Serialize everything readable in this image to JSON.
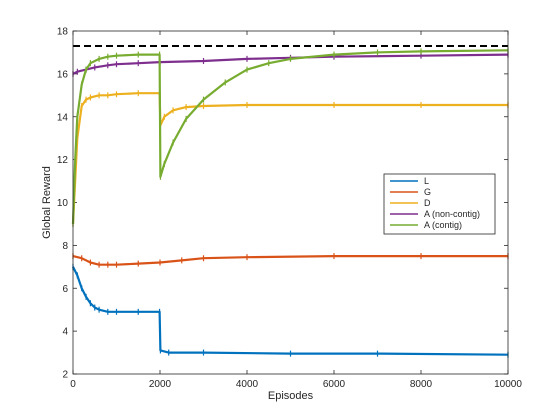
{
  "chart_data": {
    "type": "line",
    "title": "",
    "xlabel": "Episodes",
    "ylabel": "Global Reward",
    "xlim": [
      0,
      10000
    ],
    "ylim": [
      2,
      18
    ],
    "xticks": [
      0,
      2000,
      4000,
      6000,
      8000,
      10000
    ],
    "yticks": [
      2,
      4,
      6,
      8,
      10,
      12,
      14,
      16,
      18
    ],
    "grid": false,
    "legend_position": "right",
    "reference_line": {
      "y": 17.3,
      "style": "dashed",
      "color": "#000000"
    },
    "series": [
      {
        "name": "L",
        "color": "#0072BD",
        "x": [
          0,
          100,
          200,
          300,
          400,
          500,
          600,
          800,
          1000,
          1500,
          1990,
          2010,
          2200,
          3000,
          5000,
          7000,
          10000
        ],
        "y": [
          7.0,
          6.6,
          6.0,
          5.6,
          5.3,
          5.1,
          5.0,
          4.9,
          4.9,
          4.9,
          4.9,
          3.1,
          3.0,
          3.0,
          2.95,
          2.95,
          2.9
        ]
      },
      {
        "name": "G",
        "color": "#D95319",
        "x": [
          0,
          200,
          400,
          600,
          800,
          1000,
          1500,
          2000,
          2500,
          3000,
          4000,
          6000,
          8000,
          10000
        ],
        "y": [
          7.5,
          7.4,
          7.2,
          7.1,
          7.1,
          7.1,
          7.15,
          7.2,
          7.3,
          7.4,
          7.45,
          7.5,
          7.5,
          7.5
        ]
      },
      {
        "name": "D",
        "color": "#EDB120",
        "x": [
          0,
          100,
          200,
          300,
          400,
          600,
          800,
          1000,
          1500,
          1990,
          2010,
          2100,
          2300,
          2600,
          3000,
          4000,
          6000,
          8000,
          10000
        ],
        "y": [
          9.0,
          13.0,
          14.5,
          14.8,
          14.9,
          15.0,
          15.0,
          15.05,
          15.1,
          15.1,
          13.6,
          14.0,
          14.3,
          14.45,
          14.5,
          14.55,
          14.55,
          14.55,
          14.55
        ]
      },
      {
        "name": "A (non-contig)",
        "color": "#7E2F8E",
        "x": [
          0,
          100,
          300,
          500,
          800,
          1000,
          1500,
          2000,
          3000,
          4000,
          5000,
          6000,
          8000,
          10000
        ],
        "y": [
          16.0,
          16.1,
          16.2,
          16.3,
          16.4,
          16.45,
          16.5,
          16.55,
          16.6,
          16.7,
          16.75,
          16.8,
          16.85,
          16.9
        ]
      },
      {
        "name": "A (contig)",
        "color": "#77AC30",
        "x": [
          0,
          50,
          100,
          200,
          300,
          400,
          600,
          800,
          1000,
          1500,
          1990,
          2010,
          2100,
          2300,
          2600,
          3000,
          3500,
          4000,
          4500,
          5000,
          6000,
          7000,
          8000,
          10000
        ],
        "y": [
          9.0,
          12.0,
          14.0,
          15.5,
          16.2,
          16.5,
          16.7,
          16.8,
          16.85,
          16.9,
          16.9,
          11.2,
          11.8,
          12.8,
          13.9,
          14.8,
          15.6,
          16.2,
          16.5,
          16.7,
          16.9,
          17.0,
          17.05,
          17.1
        ]
      }
    ]
  }
}
